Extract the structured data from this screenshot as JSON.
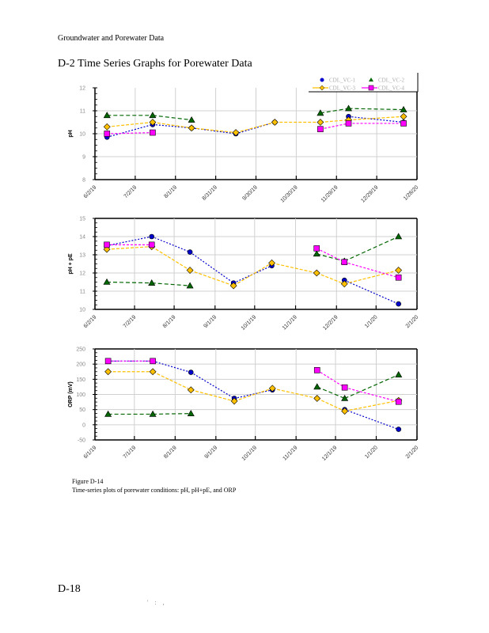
{
  "page": {
    "header": "Groundwater and Porewater Data",
    "section_title": "D-2  Time Series Graphs for Porewater Data",
    "figure_label": "Figure D-14",
    "figure_caption": "Time-series plots of porewater conditions: pH, pH+pE, and ORP",
    "page_number": "D-18",
    "footer_marks": "' : ,"
  },
  "legend": {
    "entries": [
      {
        "name": "CDL_VC-1",
        "color": "#0000cc",
        "marker": "circle"
      },
      {
        "name": "CDL_VC-2",
        "color": "#006600",
        "marker": "triangle"
      },
      {
        "name": "CDL_VC-3",
        "color": "#ffc000",
        "marker": "diamond"
      },
      {
        "name": "CDL_VC-4",
        "color": "#ff00ff",
        "marker": "square"
      }
    ]
  },
  "chart_data": [
    {
      "type": "line",
      "title": "",
      "xlabel": "",
      "ylabel": "pH",
      "ylim": [
        8,
        12
      ],
      "yticks": [
        8,
        9,
        10,
        11,
        12
      ],
      "xticks": [
        "6/2/19",
        "7/2/19",
        "8/1/19",
        "8/31/19",
        "9/30/19",
        "10/30/19",
        "11/29/19",
        "12/29/19",
        "1/28/20"
      ],
      "grid": true,
      "legend": "top-right",
      "x": [
        "6/11/19",
        "7/15/19",
        "8/13/19",
        "9/15/19",
        "10/14/19",
        "11/17/19",
        "12/8/19",
        "1/18/20"
      ],
      "series": [
        {
          "name": "CDL_VC-1",
          "values": [
            9.85,
            10.4,
            10.25,
            10.0,
            10.5,
            null,
            10.75,
            10.5
          ]
        },
        {
          "name": "CDL_VC-2",
          "values": [
            10.8,
            10.8,
            10.6,
            null,
            null,
            10.9,
            11.1,
            11.05
          ]
        },
        {
          "name": "CDL_VC-3",
          "values": [
            10.3,
            10.5,
            10.25,
            10.05,
            10.5,
            10.5,
            10.6,
            10.75
          ]
        },
        {
          "name": "CDL_VC-4",
          "values": [
            10.0,
            10.05,
            null,
            null,
            null,
            10.2,
            10.45,
            10.45
          ]
        }
      ]
    },
    {
      "type": "line",
      "title": "",
      "xlabel": "",
      "ylabel": "pH + pE",
      "ylim": [
        10,
        15
      ],
      "yticks": [
        10,
        11,
        12,
        13,
        14,
        15
      ],
      "xticks": [
        "6/2/19",
        "7/2/19",
        "8/1/19",
        "9/1/19",
        "10/1/19",
        "11/1/19",
        "12/2/19",
        "1/1/20",
        "2/1/20"
      ],
      "grid": true,
      "x": [
        "6/11/19",
        "7/15/19",
        "8/13/19",
        "9/15/19",
        "10/14/19",
        "11/17/19",
        "12/8/19",
        "1/18/20"
      ],
      "series": [
        {
          "name": "CDL_VC-1",
          "values": [
            13.5,
            14.0,
            13.15,
            11.45,
            12.4,
            null,
            11.6,
            10.3
          ]
        },
        {
          "name": "CDL_VC-2",
          "values": [
            11.5,
            11.45,
            11.3,
            null,
            null,
            13.05,
            12.65,
            14.0
          ]
        },
        {
          "name": "CDL_VC-3",
          "values": [
            13.3,
            13.45,
            12.15,
            11.3,
            12.55,
            12.0,
            11.4,
            12.15
          ]
        },
        {
          "name": "CDL_VC-4",
          "values": [
            13.55,
            13.55,
            null,
            null,
            null,
            13.35,
            12.6,
            11.75
          ]
        }
      ]
    },
    {
      "type": "line",
      "title": "",
      "xlabel": "",
      "ylabel": "ORP (mV)",
      "ylim": [
        -50,
        250
      ],
      "yticks": [
        -50,
        0,
        50,
        100,
        150,
        200,
        250
      ],
      "xticks": [
        "6/1/19",
        "7/1/19",
        "8/1/19",
        "9/1/19",
        "10/1/19",
        "11/1/19",
        "12/1/19",
        "1/1/20",
        "2/1/20"
      ],
      "grid": true,
      "x": [
        "6/11/19",
        "7/15/19",
        "8/13/19",
        "9/15/19",
        "10/14/19",
        "11/17/19",
        "12/8/19",
        "1/18/20"
      ],
      "series": [
        {
          "name": "CDL_VC-1",
          "values": [
            210,
            210,
            173,
            87,
            115,
            null,
            50,
            -15
          ]
        },
        {
          "name": "CDL_VC-2",
          "values": [
            35,
            35,
            37,
            null,
            null,
            125,
            87,
            165
          ]
        },
        {
          "name": "CDL_VC-3",
          "values": [
            175,
            175,
            115,
            78,
            120,
            87,
            45,
            80
          ]
        },
        {
          "name": "CDL_VC-4",
          "values": [
            210,
            210,
            null,
            null,
            null,
            180,
            123,
            76
          ]
        }
      ]
    }
  ]
}
